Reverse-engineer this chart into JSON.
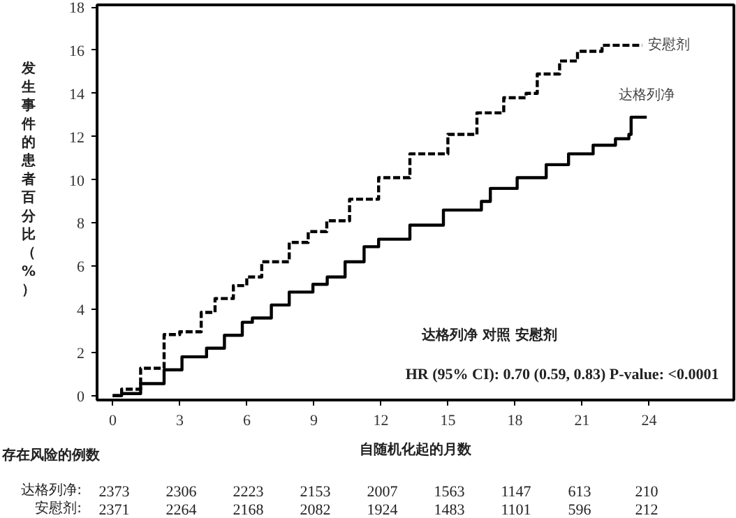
{
  "chart_data": {
    "type": "step",
    "xlabel": "自随机化起的月数",
    "ylabel": "发生事件的患者百分比（%）",
    "xlim": [
      -0.7,
      27.8
    ],
    "ylim": [
      -0.2,
      18.1
    ],
    "xticks": [
      0,
      3,
      6,
      9,
      12,
      15,
      18,
      21,
      24
    ],
    "yticks": [
      0,
      2,
      4,
      6,
      8,
      10,
      12,
      14,
      16,
      18
    ],
    "grid": false,
    "legend": false,
    "series": [
      {
        "name": "安慰剂",
        "color": "#000000",
        "line_style": "dashed",
        "x": [
          0,
          0.4,
          1.25,
          2.3,
          3.0,
          3.96,
          4.58,
          5.4,
          6.0,
          6.67,
          7.9,
          8.75,
          9.58,
          10.6,
          11.9,
          13.3,
          15.0,
          16.3,
          17.5,
          18.5,
          19.0,
          20.0,
          20.8,
          21.9,
          23.7
        ],
        "values": [
          0,
          0.3,
          1.27,
          2.83,
          2.96,
          3.86,
          4.5,
          5.1,
          5.5,
          6.2,
          7.1,
          7.6,
          8.1,
          9.1,
          10.1,
          11.2,
          12.1,
          13.1,
          13.8,
          14.0,
          14.9,
          15.5,
          15.95,
          16.23,
          16.23
        ]
      },
      {
        "name": "达格列净",
        "color": "#000000",
        "line_style": "solid",
        "x": [
          0,
          0.4,
          1.25,
          2.3,
          3.1,
          4.2,
          5.0,
          5.8,
          6.25,
          7.1,
          7.9,
          8.96,
          9.6,
          10.4,
          11.25,
          11.9,
          13.3,
          14.8,
          16.5,
          16.9,
          18.1,
          19.4,
          20.4,
          21.5,
          22.5,
          23.1,
          23.2,
          23.9
        ],
        "values": [
          0,
          0.1,
          0.56,
          1.2,
          1.8,
          2.2,
          2.8,
          3.4,
          3.6,
          4.2,
          4.8,
          5.16,
          5.5,
          6.2,
          6.9,
          7.25,
          7.9,
          8.6,
          9.0,
          9.6,
          10.1,
          10.7,
          11.2,
          11.6,
          11.9,
          12.1,
          12.9,
          12.9
        ]
      }
    ],
    "annotations": [
      "达格列净 对照 安慰剂",
      "HR (95% CI): 0.70 (0.59, 0.83)  P-value: <0.0001",
      "存在风险的例数",
      "达格列净:",
      "安慰剂:",
      "2373",
      "2306",
      "2223",
      "2153",
      "2007",
      "1563",
      "1147",
      "613",
      "210",
      "2371",
      "2264",
      "2168",
      "2082",
      "1924",
      "1483",
      "1101",
      "596",
      "212"
    ]
  }
}
